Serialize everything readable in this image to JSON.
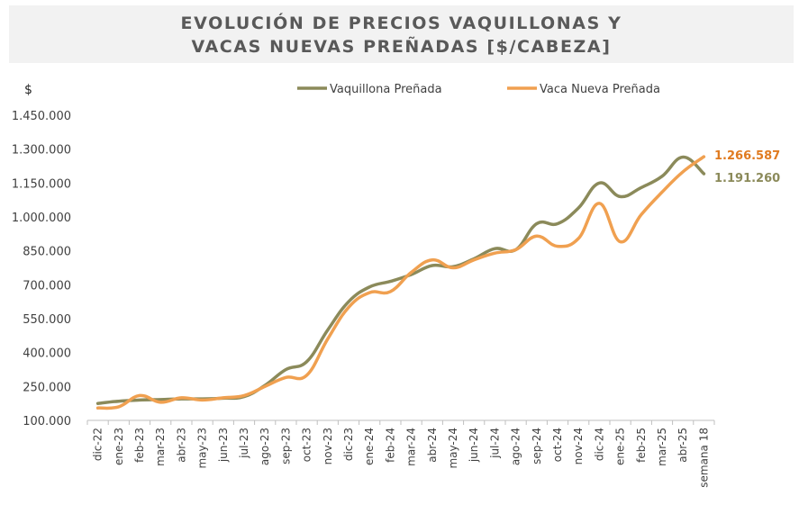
{
  "chart_data": {
    "type": "line",
    "title_line1": "EVOLUCIÓN DE PRECIOS VAQUILLONAS Y",
    "title_line2": "VACAS NUEVAS PREÑADAS [$/CABEZA]",
    "ylabel": "$",
    "ylim": [
      100000,
      1450000
    ],
    "yticks": [
      "100.000",
      "250.000",
      "400.000",
      "550.000",
      "700.000",
      "850.000",
      "1.000.000",
      "1.150.000",
      "1.300.000",
      "1.450.000"
    ],
    "categories": [
      "dic-22",
      "ene-23",
      "feb-23",
      "mar-23",
      "abr-23",
      "may-23",
      "jun-23",
      "jul-23",
      "ago-23",
      "sep-23",
      "oct-23",
      "nov-23",
      "dic-23",
      "ene-24",
      "feb-24",
      "mar-24",
      "abr-24",
      "may-24",
      "jun-24",
      "jul-24",
      "ago-24",
      "sep-24",
      "oct-24",
      "nov-24",
      "dic-24",
      "ene-25",
      "feb-25",
      "mar-25",
      "abr-25",
      "semana 18"
    ],
    "series": [
      {
        "name": "Vaquillona Preñada",
        "color": "#8b8a5a",
        "values": [
          175000,
          185000,
          190000,
          192000,
          195000,
          195000,
          198000,
          205000,
          255000,
          325000,
          360000,
          500000,
          625000,
          690000,
          715000,
          745000,
          785000,
          780000,
          815000,
          860000,
          855000,
          970000,
          970000,
          1040000,
          1150000,
          1090000,
          1130000,
          1180000,
          1265000,
          1191260
        ]
      },
      {
        "name": "Vaca Nueva Preñada",
        "color": "#f0a050",
        "values": [
          155000,
          160000,
          210000,
          180000,
          200000,
          190000,
          200000,
          210000,
          250000,
          290000,
          300000,
          460000,
          600000,
          665000,
          670000,
          755000,
          810000,
          775000,
          810000,
          840000,
          855000,
          915000,
          870000,
          905000,
          1060000,
          890000,
          1010000,
          1110000,
          1200000,
          1266587
        ]
      }
    ],
    "end_labels": [
      {
        "series": "Vaca Nueva Preñada",
        "text": "1.266.587",
        "color": "#e07b20"
      },
      {
        "series": "Vaquillona Preñada",
        "text": "1.191.260",
        "color": "#8b8a5a"
      }
    ],
    "legend_position": "top",
    "grid": false
  }
}
